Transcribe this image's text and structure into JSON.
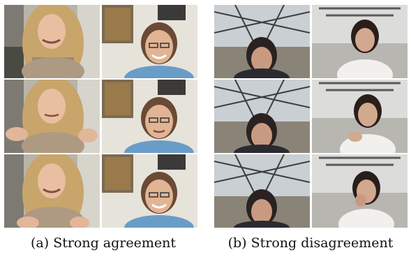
{
  "panels": [
    {
      "id": "a",
      "caption": "(a) Strong agreement"
    },
    {
      "id": "b",
      "caption": "(b) Strong disagreement"
    }
  ]
}
